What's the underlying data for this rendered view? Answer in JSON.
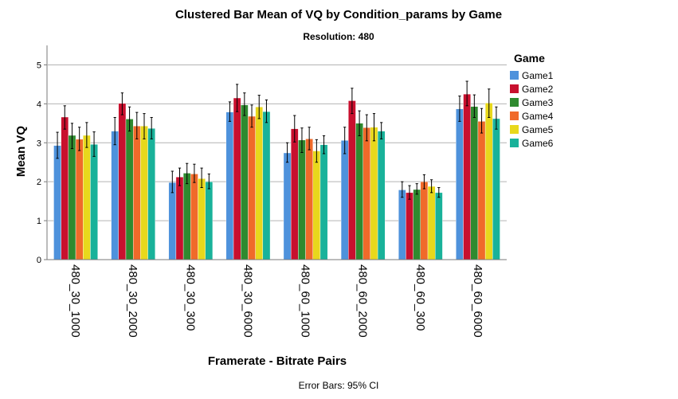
{
  "chart_data": {
    "type": "bar",
    "title": "Clustered Bar Mean of VQ by Condition_params by Game",
    "subtitle": "Resolution: 480",
    "xlabel": "Framerate - Bitrate Pairs",
    "ylabel": "Mean VQ",
    "ylim": [
      0,
      5.5
    ],
    "yticks": [
      "0",
      "1",
      "2",
      "3",
      "4",
      "5"
    ],
    "grid": "horizontal",
    "legend_title": "Game",
    "legend_position": "right",
    "footnote": "Error Bars: 95% CI",
    "categories": [
      "480_30_1000",
      "480_30_2000",
      "480_30_300",
      "480_30_6000",
      "480_60_1000",
      "480_60_2000",
      "480_60_300",
      "480_60_6000"
    ],
    "series": [
      {
        "name": "Game1",
        "color": "#4e92dc",
        "values": [
          2.93,
          3.3,
          1.98,
          3.79,
          2.74,
          3.06,
          1.79,
          3.87
        ],
        "ci_low": [
          2.6,
          2.95,
          1.72,
          3.55,
          2.5,
          2.72,
          1.6,
          3.55
        ],
        "ci_high": [
          3.27,
          3.65,
          2.27,
          4.05,
          3.0,
          3.4,
          2.0,
          4.2
        ]
      },
      {
        "name": "Game2",
        "color": "#c8102e",
        "values": [
          3.66,
          4.01,
          2.12,
          4.15,
          3.36,
          4.08,
          1.72,
          4.25
        ],
        "ci_low": [
          3.35,
          3.72,
          1.9,
          3.8,
          3.02,
          3.75,
          1.55,
          3.95
        ],
        "ci_high": [
          3.95,
          4.28,
          2.35,
          4.5,
          3.7,
          4.4,
          1.9,
          4.58
        ]
      },
      {
        "name": "Game3",
        "color": "#2f8a2f",
        "values": [
          3.19,
          3.61,
          2.22,
          3.97,
          3.07,
          3.5,
          1.8,
          3.93
        ],
        "ci_low": [
          2.85,
          3.3,
          1.95,
          3.7,
          2.75,
          3.18,
          1.68,
          3.65
        ],
        "ci_high": [
          3.5,
          3.92,
          2.47,
          4.28,
          3.38,
          3.82,
          1.95,
          4.23
        ]
      },
      {
        "name": "Game4",
        "color": "#f06a2a",
        "values": [
          3.09,
          3.43,
          2.2,
          3.68,
          3.1,
          3.39,
          2.0,
          3.55
        ],
        "ci_low": [
          2.8,
          3.1,
          1.98,
          3.4,
          2.82,
          3.05,
          1.82,
          3.25
        ],
        "ci_high": [
          3.4,
          3.78,
          2.45,
          3.97,
          3.4,
          3.72,
          2.18,
          3.88
        ]
      },
      {
        "name": "Game5",
        "color": "#e8d81c",
        "values": [
          3.19,
          3.43,
          2.08,
          3.92,
          2.79,
          3.4,
          1.88,
          4.02
        ],
        "ci_low": [
          2.88,
          3.1,
          1.85,
          3.62,
          2.5,
          3.05,
          1.72,
          3.65
        ],
        "ci_high": [
          3.52,
          3.75,
          2.35,
          4.22,
          3.08,
          3.75,
          2.05,
          4.38
        ]
      },
      {
        "name": "Game6",
        "color": "#19b29a",
        "values": [
          2.96,
          3.37,
          2.0,
          3.8,
          2.95,
          3.3,
          1.72,
          3.62
        ],
        "ci_low": [
          2.65,
          3.1,
          1.82,
          3.52,
          2.72,
          3.1,
          1.6,
          3.35
        ],
        "ci_high": [
          3.28,
          3.65,
          2.2,
          4.1,
          3.18,
          3.52,
          1.85,
          3.92
        ]
      }
    ]
  }
}
